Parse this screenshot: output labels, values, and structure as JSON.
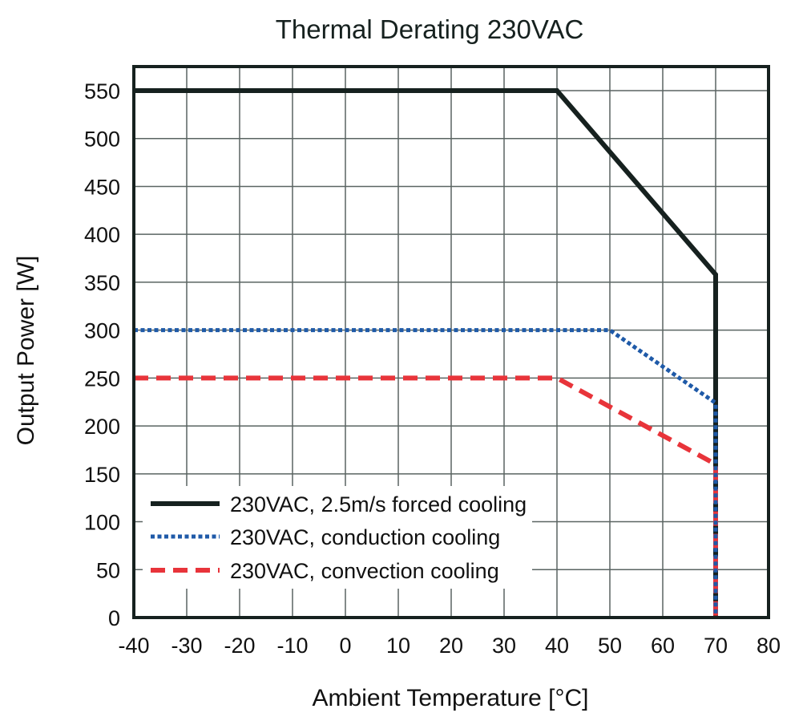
{
  "chart_data": {
    "type": "line",
    "title": "Thermal Derating 230VAC",
    "xlabel": "Ambient Temperature [°C]",
    "ylabel": "Output Power [W]",
    "xlim": [
      -40,
      80
    ],
    "ylim": [
      0,
      575
    ],
    "x_ticks": [
      -40,
      -30,
      -20,
      -10,
      0,
      10,
      20,
      30,
      40,
      50,
      60,
      70,
      80
    ],
    "y_ticks": [
      0,
      50,
      100,
      150,
      200,
      250,
      300,
      350,
      400,
      450,
      500,
      550
    ],
    "grid": true,
    "legend_position": "bottom-left",
    "series": [
      {
        "name": "230VAC, 2.5m/s forced cooling",
        "color": "#16211f",
        "style": "solid",
        "x": [
          -40,
          40,
          70,
          70
        ],
        "y": [
          550,
          550,
          358,
          0
        ]
      },
      {
        "name": "230VAC, conduction cooling",
        "color": "#1f5aa8",
        "style": "dotted",
        "x": [
          -40,
          50,
          70,
          70
        ],
        "y": [
          300,
          300,
          224,
          0
        ]
      },
      {
        "name": "230VAC, convection cooling",
        "color": "#e8343a",
        "style": "dashed",
        "x": [
          -40,
          40,
          70,
          70
        ],
        "y": [
          250,
          250,
          160,
          0
        ]
      }
    ]
  }
}
